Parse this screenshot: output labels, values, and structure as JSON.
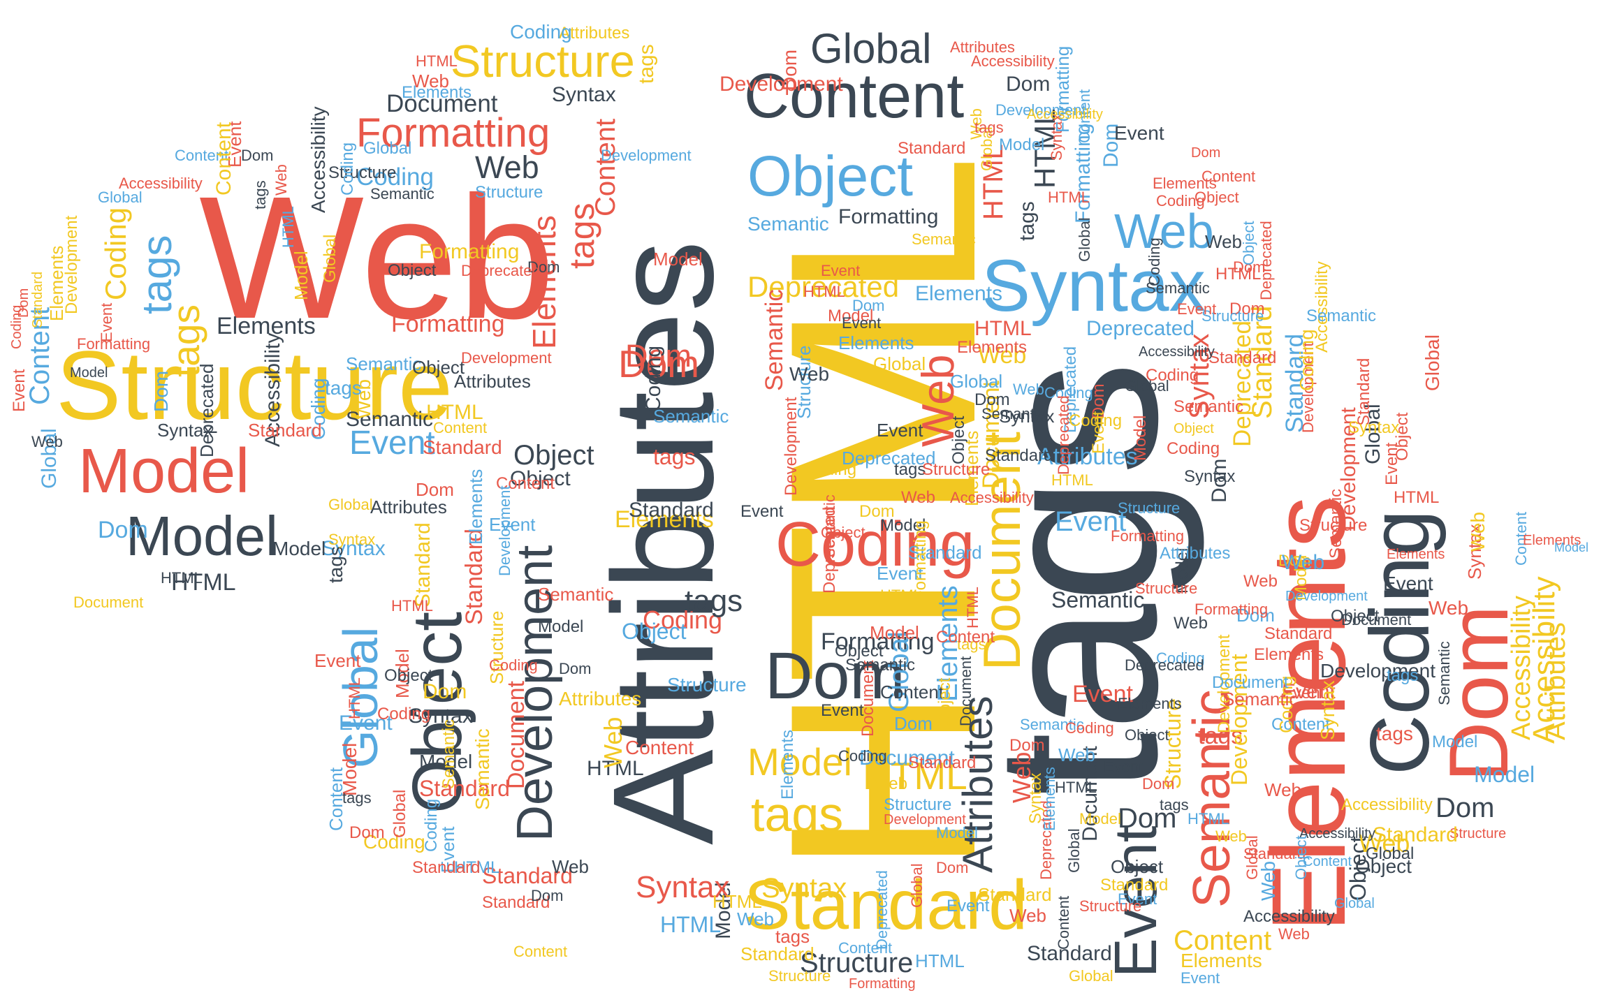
{
  "colors": {
    "red": "#e8584a",
    "yellow": "#f2c822",
    "dark": "#3b4753",
    "blue": "#56a9df",
    "background": "#ffffff"
  },
  "words": {
    "w_html": "HTML",
    "w_tags": "tags",
    "w_attributes": "Attributes",
    "w_web": "Web",
    "w_structure": "Structure",
    "w_elements": "Elements",
    "w_dom": "Dom",
    "w_coding": "Coding",
    "w_model": "Model",
    "w_standard": "Standard",
    "w_object": "Object",
    "w_content": "Content",
    "w_document": "Document",
    "w_syntax": "Syntax",
    "w_formatting": "Formatting",
    "w_global": "Global",
    "w_development": "Development",
    "w_event": "Event",
    "w_semantic": "Semantic",
    "w_deprecated": "Deprecated",
    "w_accessibility": "Accessibility"
  }
}
